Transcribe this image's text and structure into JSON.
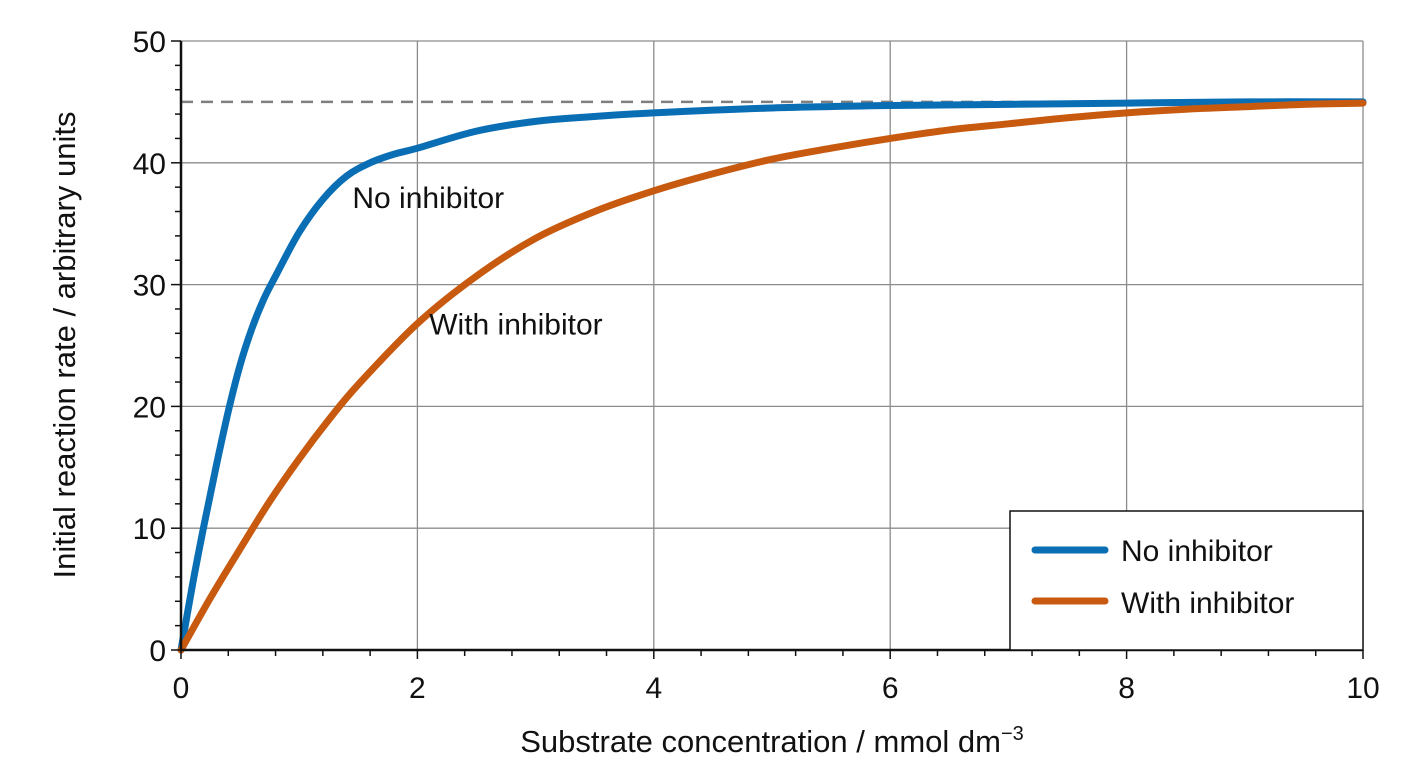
{
  "chart_data": {
    "type": "line",
    "xlabel": "Substrate concentration / mmol dm",
    "xlabel_superscript": "−3",
    "ylabel": "Initial reaction rate / arbitrary units",
    "xlim": [
      0,
      10
    ],
    "ylim": [
      0,
      50
    ],
    "x_ticks": [
      "0",
      "2",
      "4",
      "6",
      "8",
      "10"
    ],
    "y_ticks": [
      "0",
      "10",
      "20",
      "30",
      "40",
      "50"
    ],
    "grid": true,
    "legend_position": "bottom-right",
    "vmax_reference_line": 45,
    "series": [
      {
        "name": "No inhibitor",
        "color": "#0a6eb4",
        "x": [
          0,
          0.1,
          0.2,
          0.3,
          0.4,
          0.5,
          0.6,
          0.7,
          0.8,
          1.0,
          1.2,
          1.4,
          1.6,
          1.8,
          2.0,
          2.5,
          3.0,
          3.5,
          4.0,
          5.0,
          6.0,
          7.0,
          8.0,
          9.0,
          10.0
        ],
        "y": [
          0,
          5.5,
          10.5,
          15.2,
          19.6,
          23.4,
          26.4,
          28.8,
          30.7,
          34.3,
          37.0,
          38.9,
          40.0,
          40.7,
          41.2,
          42.6,
          43.4,
          43.8,
          44.1,
          44.5,
          44.7,
          44.8,
          44.9,
          45.0,
          45.0
        ]
      },
      {
        "name": "With inhibitor",
        "color": "#c85a10",
        "x": [
          0,
          0.25,
          0.5,
          0.75,
          1.0,
          1.25,
          1.5,
          2.0,
          2.5,
          3.0,
          3.5,
          4.0,
          4.5,
          5.0,
          5.5,
          6.0,
          6.5,
          7.0,
          7.5,
          8.0,
          8.5,
          9.0,
          9.5,
          10.0
        ],
        "y": [
          0,
          4.3,
          8.3,
          12.2,
          15.7,
          18.9,
          21.8,
          26.8,
          30.7,
          33.8,
          36.0,
          37.7,
          39.1,
          40.3,
          41.2,
          42.0,
          42.7,
          43.2,
          43.7,
          44.1,
          44.4,
          44.6,
          44.8,
          44.9
        ]
      }
    ],
    "annotations": [
      {
        "text": "No inhibitor",
        "x": 1.45,
        "y": 36.3
      },
      {
        "text": "With inhibitor",
        "x": 2.1,
        "y": 25.9
      }
    ],
    "legend": [
      {
        "label": "No inhibitor",
        "color": "#0a6eb4"
      },
      {
        "label": "With inhibitor",
        "color": "#c85a10"
      }
    ]
  }
}
